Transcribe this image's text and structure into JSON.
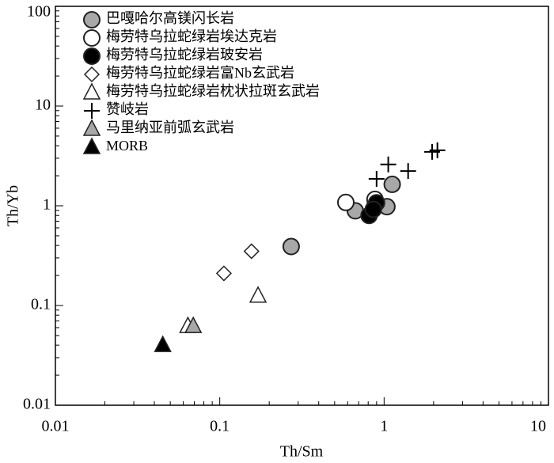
{
  "chart_data": {
    "type": "scatter",
    "x_label": "Th/Sm",
    "y_label": "Th/Yb",
    "xlim": [
      0.01,
      10
    ],
    "ylim": [
      0.01,
      100
    ],
    "xticks": [
      0.01,
      0.1,
      1,
      10
    ],
    "yticks": [
      0.01,
      0.1,
      1,
      10,
      100
    ],
    "log_x": true,
    "log_y": true,
    "legend": "upper left",
    "series": [
      {
        "name": "巴嘎哈尔高镁闪长岩",
        "marker": "circle",
        "color": "#a8a8a8",
        "x": [
          0.272,
          0.668,
          0.88,
          1.04,
          1.12
        ],
        "values": [
          0.39,
          0.89,
          1.0,
          0.98,
          1.64
        ]
      },
      {
        "name": "梅劳特乌拉蛇绿岩埃达克岩",
        "marker": "circle",
        "color": "#ffffff",
        "x": [
          0.585,
          0.88
        ],
        "values": [
          1.08,
          1.16
        ]
      },
      {
        "name": "梅劳特乌拉蛇绿岩玻安岩",
        "marker": "circle",
        "color": "#000000",
        "x": [
          0.81,
          0.9,
          0.86
        ],
        "values": [
          0.8,
          1.07,
          0.92
        ]
      },
      {
        "name": "梅劳特乌拉蛇绿岩富Nb玄武岩",
        "marker": "diamond",
        "color": "#ffffff",
        "x": [
          0.106,
          0.156
        ],
        "values": [
          0.21,
          0.35
        ]
      },
      {
        "name": "梅劳特乌拉蛇绿岩枕状拉斑玄武岩",
        "marker": "triangle",
        "color": "#ffffff",
        "x": [
          0.171,
          0.064
        ],
        "values": [
          0.125,
          0.062
        ]
      },
      {
        "name": "赞岐岩",
        "marker": "plus",
        "color": "#000000",
        "x": [
          0.9,
          1.06,
          1.4,
          1.96,
          2.11
        ],
        "values": [
          1.86,
          2.6,
          2.23,
          3.47,
          3.6
        ]
      },
      {
        "name": "马里纳亚前弧玄武岩",
        "marker": "triangle",
        "color": "#a8a8a8",
        "x": [
          0.069
        ],
        "values": [
          0.062
        ]
      },
      {
        "name": "MORB",
        "marker": "triangle",
        "color": "#000000",
        "x": [
          0.045
        ],
        "values": [
          0.04
        ]
      }
    ]
  }
}
